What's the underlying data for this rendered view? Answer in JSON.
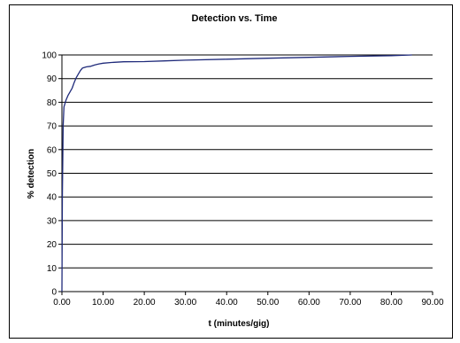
{
  "chart_data": {
    "type": "line",
    "title": "Detection vs. Time",
    "xlabel": "t (minutes/gig)",
    "ylabel": "% detection",
    "xlim": [
      0,
      90
    ],
    "ylim": [
      0,
      100
    ],
    "x_ticks": [
      "0.00",
      "10.00",
      "20.00",
      "30.00",
      "40.00",
      "50.00",
      "60.00",
      "70.00",
      "80.00",
      "90.00"
    ],
    "y_ticks": [
      "0",
      "10",
      "20",
      "30",
      "40",
      "50",
      "60",
      "70",
      "80",
      "90",
      "100"
    ],
    "grid": "horizontal",
    "legend": "none",
    "line_color": "#1f2a7a",
    "series": [
      {
        "x": [
          0,
          0.1,
          0.3,
          0.5,
          1.0,
          1.5,
          2.0,
          2.5,
          3.0,
          3.5,
          4.0,
          4.5,
          5.0,
          6.0,
          7.0,
          8.0,
          9.0,
          10.0,
          12.0,
          15.0,
          20.0,
          25.0,
          30.0,
          40.0,
          50.0,
          60.0,
          70.0,
          80.0,
          85.0
        ],
        "y": [
          0,
          40,
          70,
          78,
          81,
          83,
          84.5,
          86,
          88.5,
          90.5,
          92,
          93.5,
          94.5,
          95,
          95.2,
          95.8,
          96.2,
          96.5,
          96.8,
          97.1,
          97.2,
          97.5,
          97.8,
          98.2,
          98.6,
          99.0,
          99.4,
          99.7,
          100
        ]
      }
    ]
  }
}
